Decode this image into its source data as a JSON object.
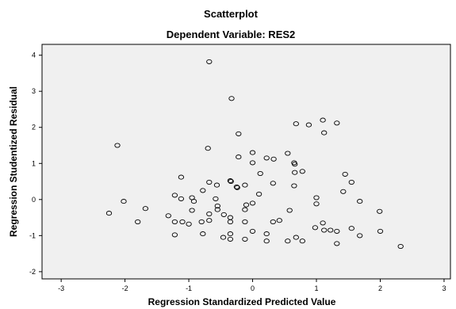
{
  "chart_data": {
    "type": "scatter",
    "title": "Scatterplot",
    "subtitle": "Dependent Variable: RES2",
    "xlabel": "Regression Standardized Predicted Value",
    "ylabel": "Regression Studentized Residual",
    "xlim": [
      -3.3,
      3.1
    ],
    "ylim": [
      -2.2,
      4.3
    ],
    "xticks": [
      -3,
      -2,
      -1,
      0,
      1,
      2,
      3
    ],
    "yticks": [
      -2,
      -1,
      0,
      1,
      2,
      3,
      4
    ],
    "grid": false,
    "colors": {
      "plot_background": "#f0f0f0",
      "page_background": "#ffffff",
      "marker": "#000000"
    },
    "points": [
      {
        "x": -0.68,
        "y": 3.82
      },
      {
        "x": -0.33,
        "y": 2.8
      },
      {
        "x": 0.68,
        "y": 2.1
      },
      {
        "x": 0.88,
        "y": 2.07
      },
      {
        "x": 1.1,
        "y": 2.2
      },
      {
        "x": 1.32,
        "y": 2.12
      },
      {
        "x": 1.12,
        "y": 1.85
      },
      {
        "x": -2.12,
        "y": 1.5
      },
      {
        "x": -0.7,
        "y": 1.42
      },
      {
        "x": -0.22,
        "y": 1.82
      },
      {
        "x": 0.0,
        "y": 1.3
      },
      {
        "x": 0.55,
        "y": 1.28
      },
      {
        "x": -0.22,
        "y": 1.18
      },
      {
        "x": 0.22,
        "y": 1.15
      },
      {
        "x": 0.33,
        "y": 1.12
      },
      {
        "x": 0.0,
        "y": 1.02
      },
      {
        "x": 0.65,
        "y": 1.02
      },
      {
        "x": 0.66,
        "y": 0.98
      },
      {
        "x": -1.12,
        "y": 0.62
      },
      {
        "x": -0.35,
        "y": 0.52
      },
      {
        "x": -0.12,
        "y": 0.4
      },
      {
        "x": 0.12,
        "y": 0.72
      },
      {
        "x": 0.66,
        "y": 0.75
      },
      {
        "x": 0.78,
        "y": 0.78
      },
      {
        "x": 1.45,
        "y": 0.7
      },
      {
        "x": 1.55,
        "y": 0.48
      },
      {
        "x": -0.68,
        "y": 0.48
      },
      {
        "x": -0.34,
        "y": 0.5
      },
      {
        "x": -0.56,
        "y": 0.4
      },
      {
        "x": -0.25,
        "y": 0.35
      },
      {
        "x": -0.24,
        "y": 0.33
      },
      {
        "x": 0.32,
        "y": 0.45
      },
      {
        "x": 0.65,
        "y": 0.38
      },
      {
        "x": -1.22,
        "y": 0.12
      },
      {
        "x": -1.12,
        "y": 0.02
      },
      {
        "x": -0.95,
        "y": 0.05
      },
      {
        "x": -0.78,
        "y": 0.25
      },
      {
        "x": -0.58,
        "y": 0.02
      },
      {
        "x": 0.1,
        "y": 0.15
      },
      {
        "x": 1.0,
        "y": 0.05
      },
      {
        "x": 1.42,
        "y": 0.22
      },
      {
        "x": -2.02,
        "y": -0.05
      },
      {
        "x": -0.92,
        "y": -0.05
      },
      {
        "x": -0.55,
        "y": -0.18
      },
      {
        "x": -0.1,
        "y": -0.15
      },
      {
        "x": -0.12,
        "y": -0.28
      },
      {
        "x": 0.0,
        "y": -0.1
      },
      {
        "x": 1.0,
        "y": -0.12
      },
      {
        "x": 1.68,
        "y": -0.05
      },
      {
        "x": -2.25,
        "y": -0.38
      },
      {
        "x": -1.68,
        "y": -0.25
      },
      {
        "x": -1.32,
        "y": -0.45
      },
      {
        "x": -0.95,
        "y": -0.3
      },
      {
        "x": -0.68,
        "y": -0.4
      },
      {
        "x": -0.55,
        "y": -0.28
      },
      {
        "x": -0.35,
        "y": -0.5
      },
      {
        "x": -0.45,
        "y": -0.42
      },
      {
        "x": 0.42,
        "y": -0.58
      },
      {
        "x": 0.58,
        "y": -0.3
      },
      {
        "x": 1.99,
        "y": -0.33
      },
      {
        "x": -1.8,
        "y": -0.62
      },
      {
        "x": -1.22,
        "y": -0.62
      },
      {
        "x": -1.1,
        "y": -0.62
      },
      {
        "x": -1.0,
        "y": -0.68
      },
      {
        "x": -0.8,
        "y": -0.62
      },
      {
        "x": -0.68,
        "y": -0.58
      },
      {
        "x": -0.35,
        "y": -0.62
      },
      {
        "x": -0.12,
        "y": -0.62
      },
      {
        "x": 0.32,
        "y": -0.62
      },
      {
        "x": 1.1,
        "y": -0.65
      },
      {
        "x": 0.98,
        "y": -0.78
      },
      {
        "x": -1.22,
        "y": -0.98
      },
      {
        "x": -0.78,
        "y": -0.95
      },
      {
        "x": -0.46,
        "y": -1.05
      },
      {
        "x": -0.35,
        "y": -0.95
      },
      {
        "x": -0.35,
        "y": -1.1
      },
      {
        "x": -0.12,
        "y": -1.1
      },
      {
        "x": 0.0,
        "y": -0.88
      },
      {
        "x": 0.22,
        "y": -0.95
      },
      {
        "x": 0.22,
        "y": -1.15
      },
      {
        "x": 0.55,
        "y": -1.15
      },
      {
        "x": 0.68,
        "y": -1.05
      },
      {
        "x": 0.78,
        "y": -1.15
      },
      {
        "x": 1.12,
        "y": -0.85
      },
      {
        "x": 1.22,
        "y": -0.85
      },
      {
        "x": 1.32,
        "y": -0.88
      },
      {
        "x": 1.55,
        "y": -0.8
      },
      {
        "x": 1.68,
        "y": -1.0
      },
      {
        "x": 2.0,
        "y": -0.88
      },
      {
        "x": 1.32,
        "y": -1.22
      },
      {
        "x": 2.32,
        "y": -1.3
      }
    ]
  }
}
